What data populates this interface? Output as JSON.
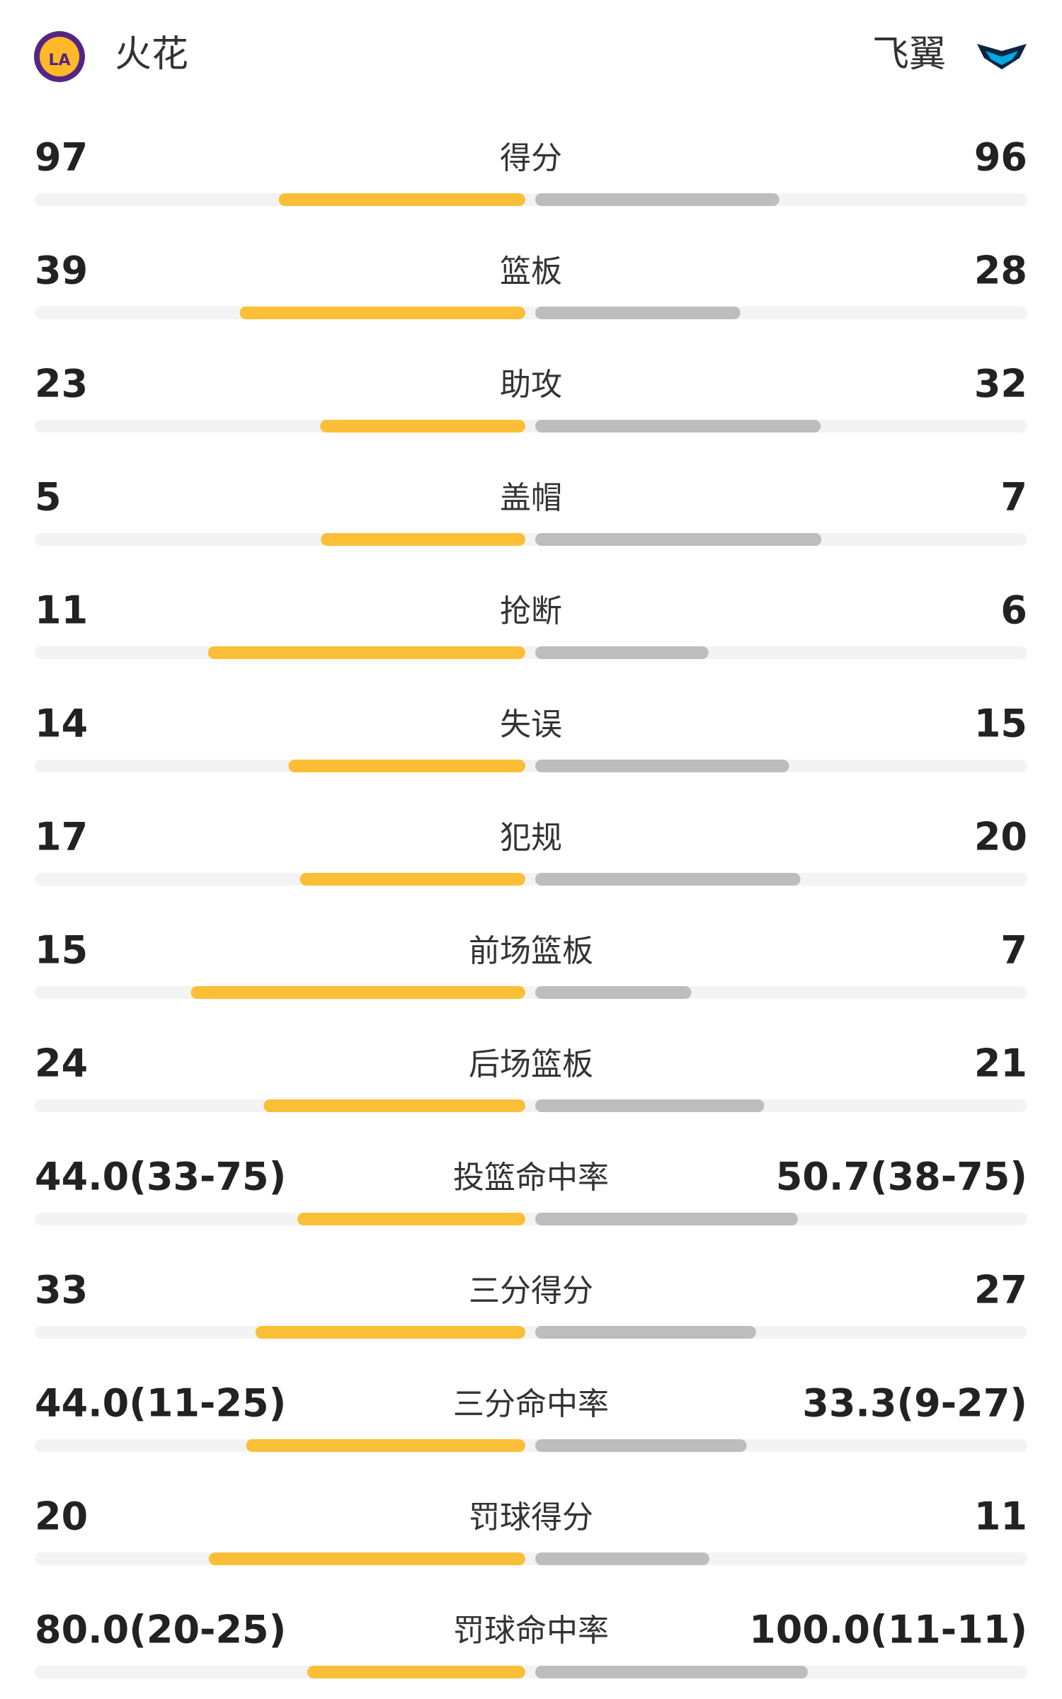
{
  "header": {
    "home": "火花",
    "away": "飞翼"
  },
  "rows": [
    {
      "label": "得分",
      "home": 97,
      "away": 96
    },
    {
      "label": "篮板",
      "home": 39,
      "away": 28
    },
    {
      "label": "助攻",
      "home": 23,
      "away": 32
    },
    {
      "label": "盖帽",
      "home": 5,
      "away": 7
    },
    {
      "label": "抢断",
      "home": 11,
      "away": 6
    },
    {
      "label": "失误",
      "home": 14,
      "away": 15
    },
    {
      "label": "犯规",
      "home": 17,
      "away": 20
    },
    {
      "label": "前场篮板",
      "home": 15,
      "away": 7
    },
    {
      "label": "后场篮板",
      "home": 24,
      "away": 21
    },
    {
      "label": "投篮命中率",
      "home": {
        "value": 44.0,
        "label": "44.0(33-75)"
      },
      "away": {
        "value": 50.7,
        "label": "50.7(38-75)"
      }
    },
    {
      "label": "三分得分",
      "home": 33,
      "away": 27
    },
    {
      "label": "三分命中率",
      "home": {
        "value": 44.0,
        "label": "44.0(11-25)"
      },
      "away": {
        "value": 33.3,
        "label": "33.3(9-27)"
      }
    },
    {
      "label": "罚球得分",
      "home": 20,
      "away": 11
    },
    {
      "label": "罚球命中率",
      "home": {
        "value": 80.0,
        "label": "80.0(20-25)"
      },
      "away": {
        "value": 100.0,
        "label": "100.0(11-11)"
      }
    }
  ]
}
